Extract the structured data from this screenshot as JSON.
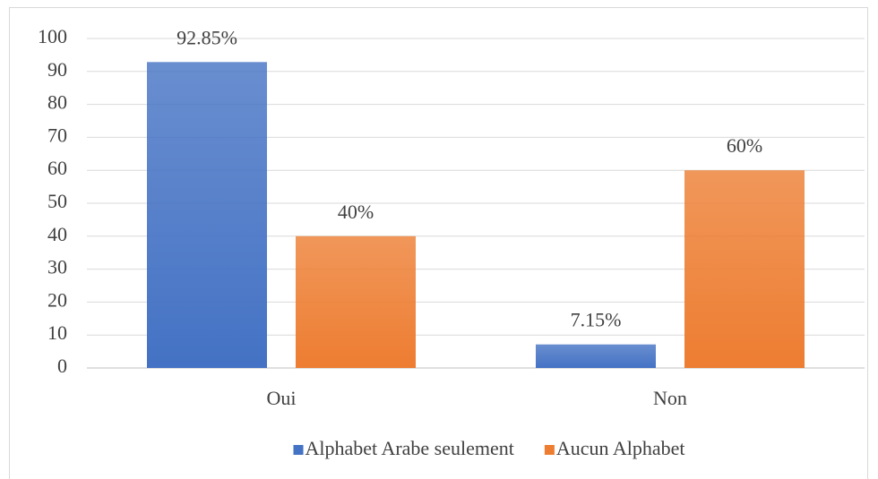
{
  "chart_data": {
    "type": "bar",
    "categories": [
      "Oui",
      "Non"
    ],
    "series": [
      {
        "name": "Alphabet Arabe seulement",
        "color": "#4472c4",
        "values": [
          92.85,
          7.15
        ],
        "value_labels": [
          "92.85%",
          "7.15%"
        ]
      },
      {
        "name": "Aucun Alphabet",
        "color": "#ed7d31",
        "values": [
          40,
          60
        ],
        "value_labels": [
          "40%",
          "60%"
        ]
      }
    ],
    "ylim": [
      0,
      100
    ],
    "yticks": [
      0,
      10,
      20,
      30,
      40,
      50,
      60,
      70,
      80,
      90,
      100
    ],
    "grid": true,
    "legend": "bottom"
  }
}
